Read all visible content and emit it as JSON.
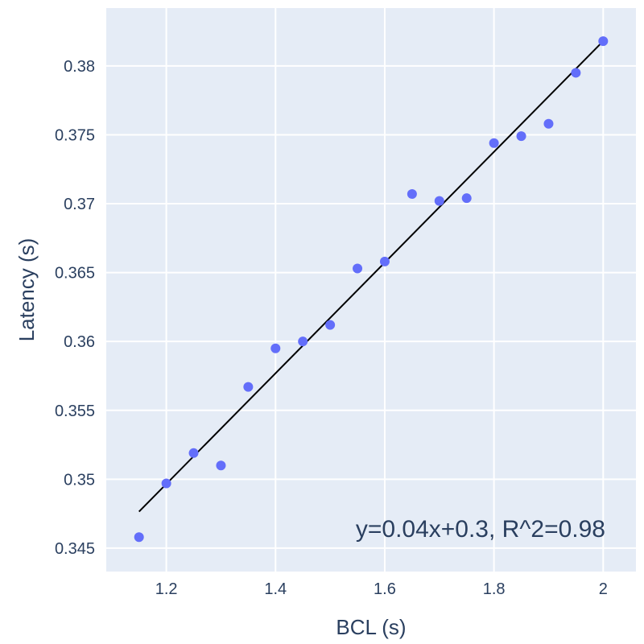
{
  "chart_data": {
    "type": "scatter",
    "title": "",
    "xlabel": "BCL (s)",
    "ylabel": "Latency (s)",
    "xlim": [
      1.09,
      2.06
    ],
    "ylim": [
      0.3433,
      0.3842
    ],
    "xticks": [
      1.2,
      1.4,
      1.6,
      1.8,
      2.0
    ],
    "xtick_labels": [
      "1.2",
      "1.4",
      "1.6",
      "1.8",
      "2"
    ],
    "yticks": [
      0.345,
      0.35,
      0.355,
      0.36,
      0.365,
      0.37,
      0.375,
      0.38
    ],
    "ytick_labels": [
      "0.345",
      "0.35",
      "0.355",
      "0.36",
      "0.365",
      "0.37",
      "0.375",
      "0.38"
    ],
    "grid": true,
    "plot_background": "#e5ecf6",
    "grid_color": "#ffffff",
    "text_color": "#2a3f5f",
    "marker_color": "#636efa",
    "fit_line_color": "#000000",
    "points": {
      "x": [
        1.15,
        1.2,
        1.25,
        1.3,
        1.35,
        1.4,
        1.45,
        1.5,
        1.55,
        1.6,
        1.65,
        1.7,
        1.75,
        1.8,
        1.85,
        1.9,
        1.95,
        2.0
      ],
      "y": [
        0.3458,
        0.3497,
        0.3519,
        0.351,
        0.3567,
        0.3595,
        0.36,
        0.3612,
        0.3653,
        0.3658,
        0.3707,
        0.3702,
        0.3704,
        0.3744,
        0.3749,
        0.3758,
        0.3795,
        0.3818
      ]
    },
    "fit_line": {
      "x": [
        1.15,
        2.0
      ],
      "y": [
        0.34765,
        0.3818
      ]
    },
    "annotation": "y=0.04x+0.3,  R^2=0.98"
  }
}
